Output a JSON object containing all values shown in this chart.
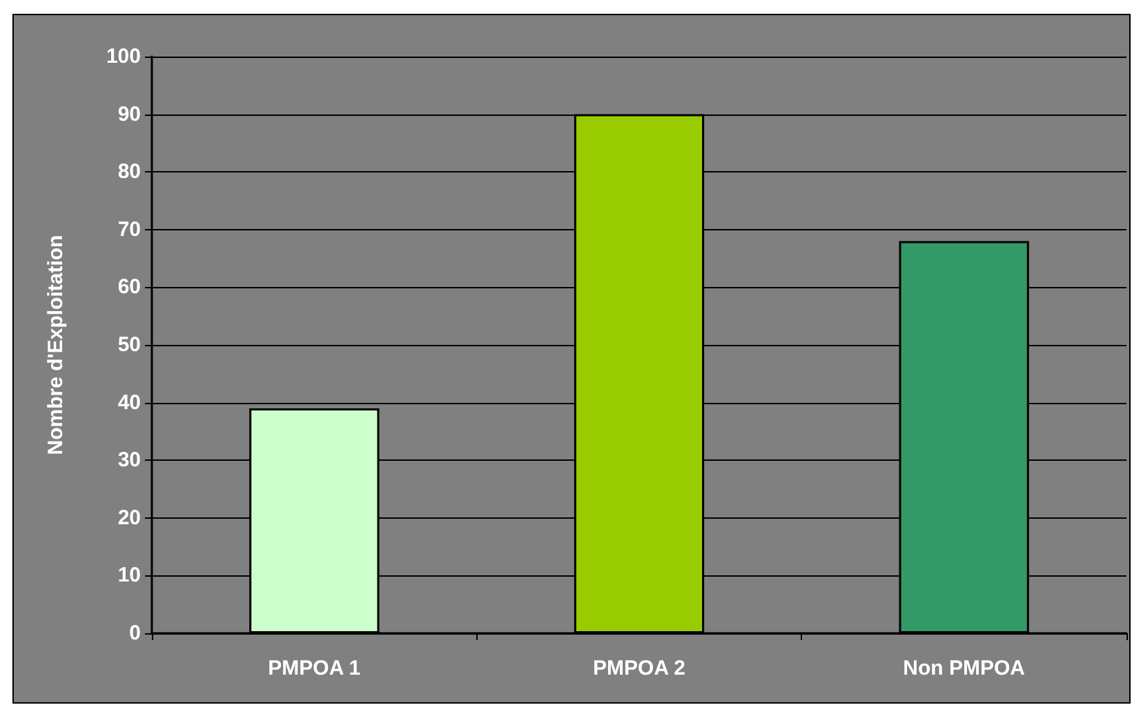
{
  "chart_data": {
    "type": "bar",
    "ylabel": "Nombre d'Exploitation",
    "categories": [
      "PMPOA 1",
      "PMPOA 2",
      "Non PMPOA"
    ],
    "values": [
      39,
      90,
      68
    ],
    "colors": [
      "#ccffcc",
      "#99cc00",
      "#339966"
    ],
    "ylim": [
      0,
      100
    ],
    "yticks": [
      0,
      10,
      20,
      30,
      40,
      50,
      60,
      70,
      80,
      90,
      100
    ],
    "grid": "y"
  }
}
